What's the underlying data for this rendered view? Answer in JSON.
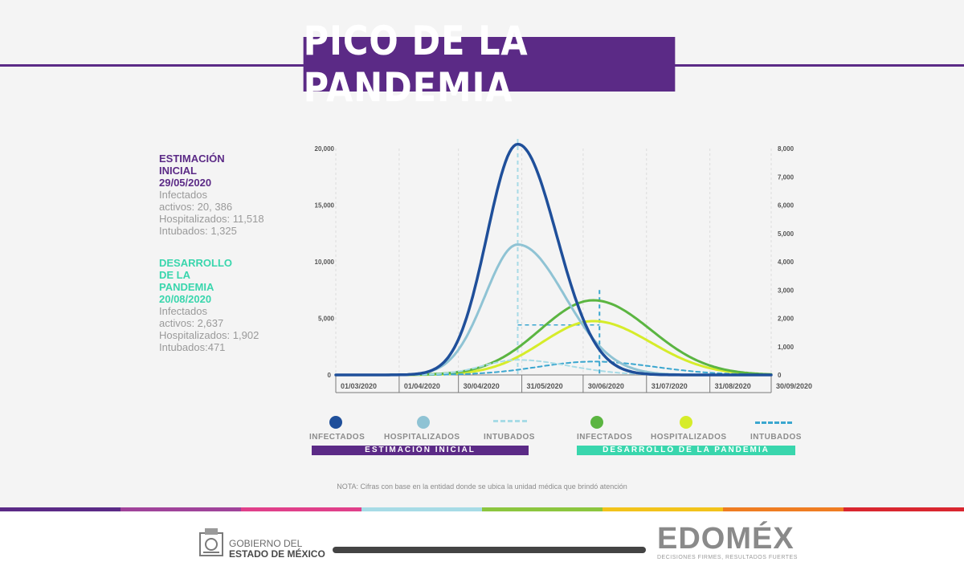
{
  "title": "PICO DE LA PANDEMIA",
  "estimacion": {
    "heading_l1": "ESTIMACIÓN",
    "heading_l2": "INICIAL",
    "date": "29/05/2020",
    "line1": "Infectados",
    "line2": "activos: 20, 386",
    "line3": "Hospitalizados: 11,518",
    "line4": "Intubados: 1,325"
  },
  "desarrollo": {
    "heading_l1": "DESARROLLO",
    "heading_l2": "DE LA",
    "heading_l3": "PANDEMIA",
    "date": "20/08/2020",
    "line1": "Infectados",
    "line2": "activos: 2,637",
    "line3": "Hospitalizados: 1,902",
    "line4": "Intubados:471"
  },
  "legend": {
    "est_infectados": "INFECTADOS",
    "est_hospitalizados": "HOSPITALIZADOS",
    "est_intubados": "INTUBADOS",
    "dev_infectados": "INFECTADOS",
    "dev_hospitalizados": "HOSPITALIZADOS",
    "dev_intubados": "INTUBADOS",
    "est_bar": "ESTIMACIÓN INICIAL",
    "dev_bar": "DESARROLLO DE LA PANDEMIA"
  },
  "note": "NOTA: Cifras con base en la entidad donde se ubica la unidad médica que brindó atención",
  "footer": {
    "gob_line1": "GOBIERNO DEL",
    "gob_line2": "ESTADO DE MÉXICO",
    "edomex": "EDOMÉX",
    "tagline": "DECISIONES FIRMES, RESULTADOS FUERTES"
  },
  "colors": {
    "purple": "#5b2a86",
    "teal": "#39d6ad",
    "est_infectados": "#1f4f9a",
    "est_hospitalizados": "#8fc3d4",
    "est_intubados": "#a7dbe6",
    "dev_infectados": "#5bb541",
    "dev_hospitalizados": "#d6ec2a",
    "dev_intubados": "#3aa6cf"
  },
  "chart_data": {
    "type": "line",
    "x_tick_labels": [
      "01/03/2020",
      "01/04/2020",
      "30/04/2020",
      "31/05/2020",
      "30/06/2020",
      "31/07/2020",
      "31/08/2020",
      "30/09/2020"
    ],
    "x_range_days": [
      0,
      213
    ],
    "y_left": {
      "range": [
        0,
        20000
      ],
      "ticks": [
        0,
        5000,
        10000,
        15000,
        20000
      ],
      "tick_labels": [
        "0",
        "5,000",
        "10,000",
        "15,000",
        "20,000"
      ]
    },
    "y_right": {
      "range": [
        0,
        8000
      ],
      "ticks": [
        0,
        1000,
        2000,
        3000,
        4000,
        5000,
        6000,
        7000,
        8000
      ],
      "tick_labels": [
        "0",
        "1,000",
        "2,000",
        "3,000",
        "4,000",
        "5,000",
        "6,000",
        "7,000",
        "8,000"
      ]
    },
    "series": [
      {
        "name": "INFECTADOS",
        "group": "ESTIMACIÓN INICIAL",
        "axis": "left",
        "peak_date": "29/05/2020",
        "peak_value": 20386,
        "style": "solid"
      },
      {
        "name": "HOSPITALIZADOS",
        "group": "ESTIMACIÓN INICIAL",
        "axis": "left",
        "peak_date": "29/05/2020",
        "peak_value": 11518,
        "style": "solid"
      },
      {
        "name": "INTUBADOS",
        "group": "ESTIMACIÓN INICIAL",
        "axis": "left",
        "peak_date": "29/05/2020",
        "peak_value": 1325,
        "style": "dashed"
      },
      {
        "name": "INFECTADOS",
        "group": "DESARROLLO DE LA PANDEMIA",
        "axis": "right",
        "peak_date": "05/07/2020",
        "peak_value": 2637,
        "style": "solid"
      },
      {
        "name": "HOSPITALIZADOS",
        "group": "DESARROLLO DE LA PANDEMIA",
        "axis": "right",
        "peak_date": "05/07/2020",
        "peak_value": 1902,
        "style": "solid"
      },
      {
        "name": "INTUBADOS",
        "group": "DESARROLLO DE LA PANDEMIA",
        "axis": "right",
        "peak_date": "05/07/2020",
        "peak_value": 471,
        "style": "dashed"
      }
    ]
  }
}
